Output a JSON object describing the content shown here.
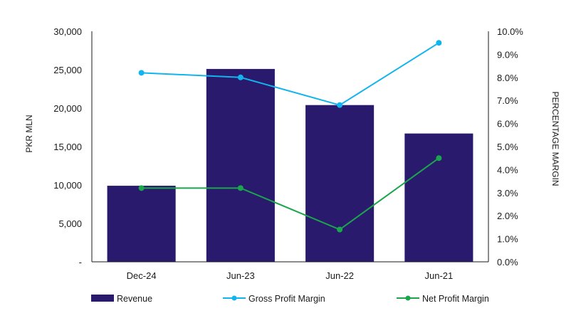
{
  "chart_data": {
    "type": "bar",
    "categories": [
      "Dec-24",
      "Jun-23",
      "Jun-22",
      "Jun-21"
    ],
    "series": [
      {
        "name": "Revenue",
        "type": "bar",
        "axis": "left",
        "color": "#2a1a6e",
        "values": [
          9900,
          25100,
          20400,
          16700
        ]
      },
      {
        "name": "Gross Profit Margin",
        "type": "line",
        "axis": "right",
        "color": "#12b4ee",
        "values": [
          8.2,
          8.0,
          6.8,
          9.5
        ]
      },
      {
        "name": "Net Profit Margin",
        "type": "line",
        "axis": "right",
        "color": "#1aa64b",
        "values": [
          3.2,
          3.2,
          1.4,
          4.5
        ]
      }
    ],
    "ylabel": "PKR MLN",
    "y2label": "PERCENTAGE MARGIN",
    "ylim": [
      0,
      30000
    ],
    "y2lim": [
      0,
      10
    ],
    "yticks": [
      "-",
      "5,000",
      "10,000",
      "15,000",
      "20,000",
      "25,000",
      "30,000"
    ],
    "y2ticks": [
      "0.0%",
      "1.0%",
      "2.0%",
      "3.0%",
      "4.0%",
      "5.0%",
      "6.0%",
      "7.0%",
      "8.0%",
      "9.0%",
      "10.0%"
    ],
    "legend_position": "bottom",
    "grid": false
  }
}
